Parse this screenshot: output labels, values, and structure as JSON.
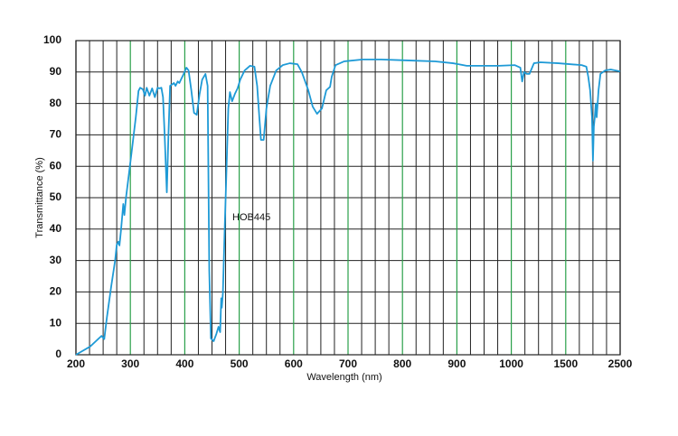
{
  "chart_data": {
    "type": "line",
    "annotation": "HOB445",
    "xlabel": "Wavelength (nm)",
    "ylabel": "Transmittance (%)",
    "color": "#1e9ad6",
    "grid": true,
    "major_grid_color": "#2aa04a",
    "x": [
      200,
      226,
      247,
      252,
      257,
      265,
      272,
      275,
      278,
      280,
      283,
      287,
      289,
      292,
      297,
      303,
      310,
      315,
      318,
      323,
      327,
      330,
      335,
      340,
      345,
      350,
      353,
      357,
      360,
      363,
      367,
      370,
      373,
      380,
      383,
      387,
      390,
      393,
      398,
      403,
      407,
      412,
      417,
      422,
      427,
      432,
      438,
      442,
      445,
      448,
      453,
      458,
      462,
      465,
      467,
      468,
      470,
      473,
      477,
      480,
      483,
      487,
      492,
      497,
      502,
      510,
      520,
      528,
      533,
      537,
      540,
      545,
      550,
      557,
      568,
      580,
      593,
      607,
      615,
      627,
      635,
      643,
      652,
      660,
      667,
      670,
      677,
      693,
      727,
      760,
      810,
      860,
      893,
      918,
      977,
      1033,
      1083,
      1100,
      1117,
      1142,
      1167,
      1208,
      1267,
      1433,
      1793,
      1879,
      1914,
      1948,
      1983,
      2000,
      2017,
      2034,
      2052,
      2069,
      2103,
      2138,
      2224,
      2328,
      2500
    ],
    "values": [
      0,
      2.6,
      6,
      5,
      12,
      22,
      30,
      35,
      36,
      34.8,
      40,
      48,
      44.5,
      50,
      57,
      65.5,
      75.6,
      84,
      85,
      84.5,
      82.5,
      85,
      82.5,
      84.8,
      82,
      85,
      84.8,
      85,
      82,
      70,
      51.7,
      70,
      85.6,
      86.5,
      85.6,
      87,
      86.5,
      87.6,
      89.4,
      91.4,
      90.5,
      84.2,
      77,
      76.4,
      82.8,
      87.6,
      89.4,
      85.6,
      26.7,
      5.2,
      4.3,
      6.6,
      8.9,
      7.2,
      18,
      15,
      19.5,
      38,
      61,
      78.4,
      83.6,
      80.7,
      83,
      84.8,
      87.6,
      90.5,
      92,
      91.7,
      85.6,
      75.6,
      68.4,
      68.4,
      78.4,
      85.6,
      90.5,
      92.2,
      92.8,
      92.5,
      90,
      84.2,
      79,
      76.7,
      78.4,
      84.2,
      85.3,
      88.5,
      92.2,
      93.4,
      94,
      94,
      93.7,
      93.4,
      92.8,
      92,
      92,
      92.2,
      91.4,
      87,
      90,
      89.4,
      89.4,
      92.8,
      93.1,
      92.8,
      92.2,
      91.7,
      88.5,
      84.2,
      75.6,
      61.8,
      72.7,
      75.6,
      80,
      75.6,
      84.2,
      89.4,
      90.5,
      90.8,
      90.2
    ],
    "xlim": [
      200,
      2500
    ],
    "xticks": [
      200,
      300,
      400,
      500,
      600,
      700,
      800,
      900,
      1000,
      1500,
      2500
    ],
    "xminorticks": [
      225,
      250,
      275,
      325,
      350,
      375,
      425,
      450,
      475,
      525,
      550,
      575,
      625,
      650,
      675,
      725,
      750,
      775,
      825,
      850,
      875,
      925,
      950,
      975,
      1125,
      1250,
      1375,
      1750,
      2000,
      2250
    ],
    "ylim": [
      0,
      100
    ],
    "yticks": [
      0,
      10,
      20,
      30,
      40,
      50,
      60,
      70,
      80,
      90,
      100
    ]
  }
}
